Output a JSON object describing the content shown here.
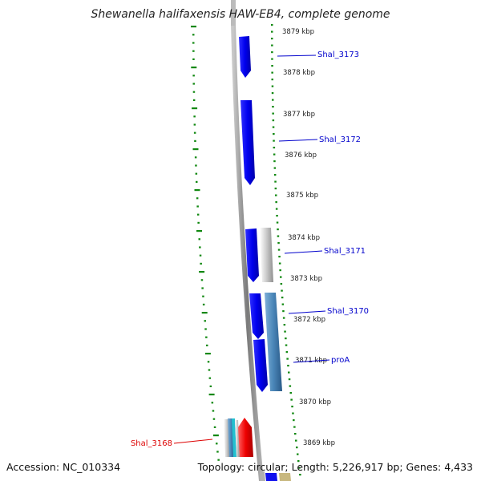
{
  "title": "Shewanella halifaxensis HAW-EB4, complete genome",
  "footer": {
    "accession": "Accession: NC_010334",
    "summary": "Topology: circular; Length: 5,226,917 bp; Genes: 4,433"
  },
  "colors": {
    "forward_gene": "#0000ee",
    "reverse_gene_light": "#c0c0c0",
    "steel_gene": "#4a86b8",
    "highlight_gene": "#ee0000",
    "cyan_gene": "#22c0d0",
    "gc_skew": "#118811",
    "backbone": "#888888",
    "label_blue": "#0000cc",
    "label_red": "#dd0000"
  },
  "scale_labels": [
    {
      "text": "3879 kbp",
      "kbp": 3879
    },
    {
      "text": "3878 kbp",
      "kbp": 3878
    },
    {
      "text": "3877 kbp",
      "kbp": 3877
    },
    {
      "text": "3876 kbp",
      "kbp": 3876
    },
    {
      "text": "3875 kbp",
      "kbp": 3875
    },
    {
      "text": "3874 kbp",
      "kbp": 3874
    },
    {
      "text": "3873 kbp",
      "kbp": 3873
    },
    {
      "text": "3872 kbp",
      "kbp": 3872
    },
    {
      "text": "3871 kbp",
      "kbp": 3871
    },
    {
      "text": "3870 kbp",
      "kbp": 3870
    },
    {
      "text": "3869 kbp",
      "kbp": 3869
    }
  ],
  "genes": [
    {
      "label": "Shal_3173",
      "color": "label_blue"
    },
    {
      "label": "Shal_3172",
      "color": "label_blue"
    },
    {
      "label": "Shal_3171",
      "color": "label_blue"
    },
    {
      "label": "Shal_3170",
      "color": "label_blue"
    },
    {
      "label": "proA",
      "color": "label_blue"
    },
    {
      "label": "Shal_3168",
      "color": "label_red"
    }
  ]
}
